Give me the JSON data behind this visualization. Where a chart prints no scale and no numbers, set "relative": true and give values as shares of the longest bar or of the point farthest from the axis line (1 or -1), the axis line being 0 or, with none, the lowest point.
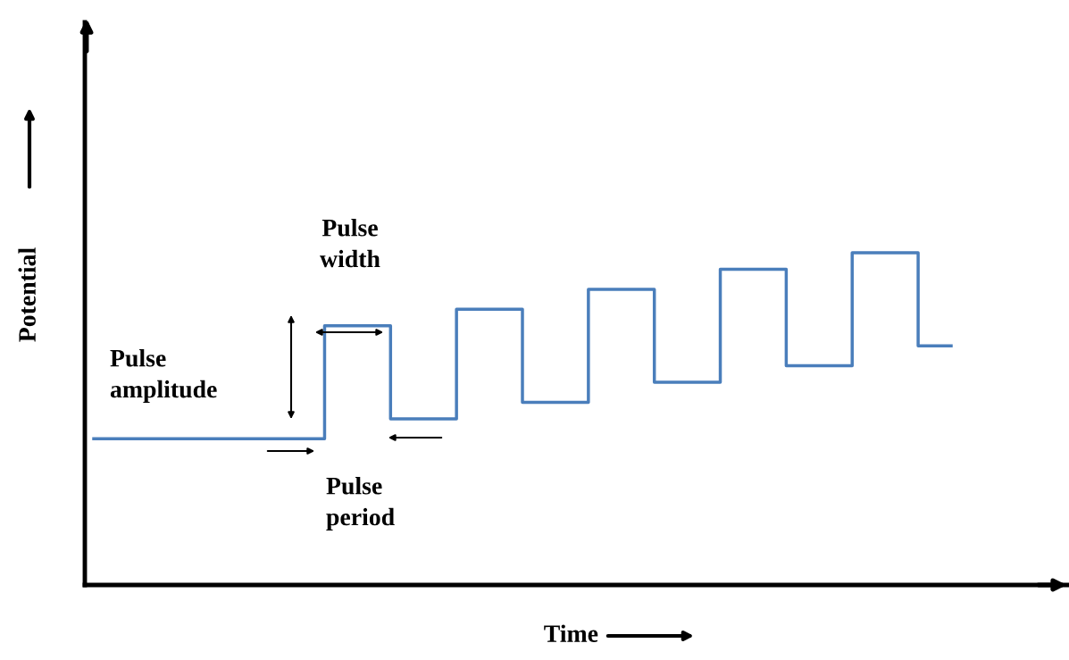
{
  "chart_data": {
    "type": "step",
    "relative": true,
    "xlabel": "Time",
    "ylabel": "Potential",
    "categories": [
      null,
      null,
      null,
      null,
      null,
      null,
      null,
      null,
      null,
      null,
      null,
      null,
      null,
      null,
      null,
      null,
      null,
      null,
      null,
      null,
      null,
      null,
      null,
      null,
      null,
      null,
      null
    ],
    "series": [
      {
        "color": "#4a7ebb",
        "values": [
          0.44,
          0.44,
          0.44,
          0.44,
          0.44,
          0.44,
          0.44,
          0.78,
          0.78,
          0.5,
          0.5,
          0.83,
          0.83,
          0.55,
          0.55,
          0.89,
          0.89,
          0.61,
          0.61,
          0.95,
          0.95,
          0.66,
          0.66,
          1.0,
          1.0,
          0.72,
          0.72
        ]
      }
    ],
    "annotations": [
      "Pulse width",
      "Pulse amplitude",
      "Pulse period"
    ],
    "grid": false
  }
}
